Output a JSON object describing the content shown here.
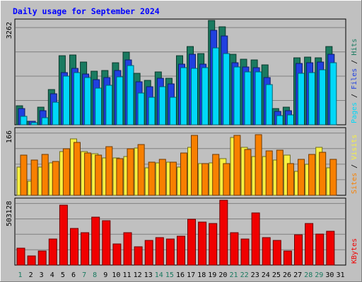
{
  "chart_data": {
    "type": "bar",
    "title": "Daily usage for September 2024",
    "days": [
      "1",
      "2",
      "3",
      "4",
      "5",
      "6",
      "7",
      "8",
      "9",
      "10",
      "11",
      "12",
      "13",
      "14",
      "15",
      "16",
      "17",
      "18",
      "19",
      "20",
      "21",
      "22",
      "23",
      "24",
      "25",
      "26",
      "27",
      "28",
      "29",
      "30",
      "31"
    ],
    "weekend_days": [
      1,
      7,
      8,
      14,
      15,
      21,
      22,
      28,
      29
    ],
    "panels": [
      {
        "id": "top",
        "ymax_label": "3262",
        "ymax": 3262,
        "right_labels": [
          "Pages",
          "Files",
          "Hits"
        ],
        "series": [
          {
            "name": "Hits",
            "color": "#1a7a60",
            "values": [
              600,
              120,
              560,
              1110,
              2150,
              2180,
              1970,
              1680,
              1700,
              1930,
              2260,
              1600,
              1390,
              1650,
              1460,
              2160,
              2440,
              2220,
              3260,
              3060,
              2200,
              2060,
              2030,
              1870,
              500,
              560,
              2100,
              2120,
              2090,
              2440,
              0
            ]
          },
          {
            "name": "Files",
            "color": "#2040e0",
            "values": [
              500,
              100,
              430,
              980,
              1620,
              1760,
              1580,
              1420,
              1480,
              1700,
              2020,
              1350,
              1180,
              1450,
              1280,
              1900,
              2200,
              1900,
              2960,
              2780,
              1950,
              1800,
              1790,
              1480,
              410,
              430,
              1920,
              1930,
              1960,
              2200,
              0
            ]
          },
          {
            "name": "Pages",
            "color": "#00d8f8",
            "values": [
              260,
              60,
              210,
              700,
              1520,
              1620,
              1480,
              1150,
              1240,
              1500,
              1860,
              1000,
              850,
              1180,
              870,
              1790,
              1760,
              1790,
              2400,
              2220,
              1800,
              1660,
              1660,
              1250,
              280,
              300,
              1600,
              1630,
              1720,
              1930,
              0
            ]
          }
        ]
      },
      {
        "id": "middle",
        "ymax_label": "166",
        "ymax": 166,
        "right_labels": [
          "Sites",
          "Visits"
        ],
        "series": [
          {
            "name": "Visits",
            "color": "#f8f040",
            "values": [
              70,
              35,
              70,
              82,
              110,
              142,
              110,
              105,
              93,
              93,
              98,
              118,
              68,
              82,
              83,
              70,
              120,
              80,
              82,
              92,
              145,
              120,
              98,
              98,
              88,
              100,
              60,
              78,
              120,
              68,
              0
            ]
          },
          {
            "name": "Sites",
            "color": "#f88000",
            "values": [
              100,
              88,
              102,
              84,
              116,
              132,
              106,
              100,
              122,
              92,
              116,
              127,
              83,
              90,
              83,
              106,
              150,
              80,
              102,
              80,
              150,
              114,
              152,
              112,
              113,
              80,
              90,
              102,
              108,
              90,
              0
            ]
          }
        ]
      },
      {
        "id": "bottom",
        "ymax_label": "503128",
        "ymax": 503128,
        "right_labels": [
          "KBytes"
        ],
        "series": [
          {
            "name": "KBytes",
            "color": "#f00000",
            "values": [
              130000,
              70000,
              110000,
              200000,
              460000,
              280000,
              250000,
              370000,
              340000,
              160000,
              250000,
              140000,
              190000,
              210000,
              200000,
              220000,
              350000,
              330000,
              320000,
              500000,
              250000,
              200000,
              400000,
              210000,
              190000,
              110000,
              230000,
              320000,
              240000,
              260000,
              0
            ]
          }
        ]
      }
    ]
  }
}
